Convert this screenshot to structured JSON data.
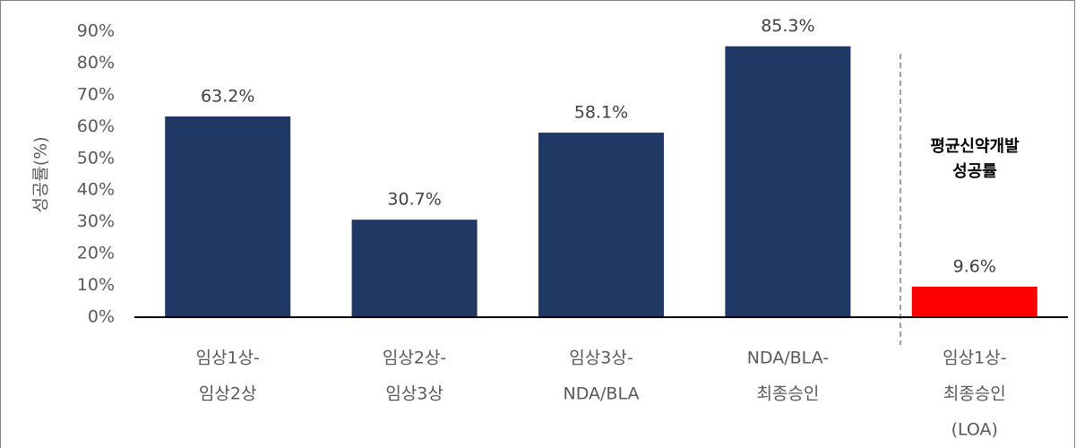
{
  "chart_data": {
    "type": "bar",
    "y_label": "성공률(%)",
    "categories": [
      [
        "임상1상-",
        "임상2상"
      ],
      [
        "임상2상-",
        "임상3상"
      ],
      [
        "임상3상-",
        "NDA/BLA"
      ],
      [
        "NDA/BLA-",
        "최종승인"
      ],
      [
        "임상1상-",
        "최종승인",
        "(LOA)"
      ]
    ],
    "values": [
      63.2,
      30.7,
      58.1,
      85.3,
      9.6
    ],
    "value_labels": [
      "63.2%",
      "30.7%",
      "58.1%",
      "85.3%",
      "9.6%"
    ],
    "colors": [
      "#1f3864",
      "#1f3864",
      "#1f3864",
      "#1f3864",
      "#ff0000"
    ],
    "ylim": [
      0,
      90
    ],
    "yticks": [
      {
        "value": 0,
        "label": "0%"
      },
      {
        "value": 10,
        "label": "10%"
      },
      {
        "value": 20,
        "label": "20%"
      },
      {
        "value": 30,
        "label": "30%"
      },
      {
        "value": 40,
        "label": "40%"
      },
      {
        "value": 50,
        "label": "50%"
      },
      {
        "value": 60,
        "label": "60%"
      },
      {
        "value": 70,
        "label": "70%"
      },
      {
        "value": 80,
        "label": "80%"
      },
      {
        "value": 90,
        "label": "90%"
      }
    ],
    "grid": false,
    "annotation": [
      "평균신약개발",
      "성공률"
    ]
  }
}
